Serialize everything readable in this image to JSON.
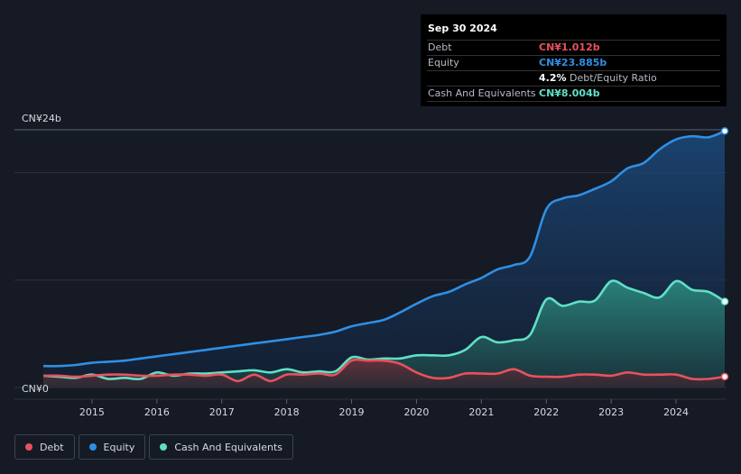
{
  "tooltip": {
    "date": "Sep 30 2024",
    "rows": [
      {
        "label": "Debt",
        "value": "CN¥1.012b",
        "color": "#e8525b"
      },
      {
        "label": "Equity",
        "value": "CN¥23.885b",
        "color": "#2f8fe4"
      },
      {
        "ratio_value": "4.2%",
        "ratio_label": "Debt/Equity Ratio"
      },
      {
        "label": "Cash And Equivalents",
        "value": "CN¥8.004b",
        "color": "#5fe0c6"
      }
    ]
  },
  "legend": [
    {
      "label": "Debt",
      "color": "#e8525b"
    },
    {
      "label": "Equity",
      "color": "#2f8fe4"
    },
    {
      "label": "Cash And Equivalents",
      "color": "#5fe0c6"
    }
  ],
  "chart_data": {
    "type": "area",
    "y_top_label": "CN¥24b",
    "y_zero_label": "CN¥0",
    "ylim": [
      0,
      24
    ],
    "xlim": [
      2014.25,
      2024.75
    ],
    "x_ticks": [
      "2015",
      "2016",
      "2017",
      "2018",
      "2019",
      "2020",
      "2021",
      "2022",
      "2023",
      "2024"
    ],
    "grid": true,
    "series": [
      {
        "name": "Equity",
        "color": "#2f8fe4",
        "points": [
          [
            2014.25,
            2.0
          ],
          [
            2014.5,
            2.0
          ],
          [
            2014.75,
            2.1
          ],
          [
            2015.0,
            2.3
          ],
          [
            2015.25,
            2.4
          ],
          [
            2015.5,
            2.5
          ],
          [
            2015.75,
            2.7
          ],
          [
            2016.0,
            2.9
          ],
          [
            2016.25,
            3.1
          ],
          [
            2016.5,
            3.3
          ],
          [
            2016.75,
            3.5
          ],
          [
            2017.0,
            3.7
          ],
          [
            2017.25,
            3.9
          ],
          [
            2017.5,
            4.1
          ],
          [
            2017.75,
            4.3
          ],
          [
            2018.0,
            4.5
          ],
          [
            2018.25,
            4.7
          ],
          [
            2018.5,
            4.9
          ],
          [
            2018.75,
            5.2
          ],
          [
            2019.0,
            5.7
          ],
          [
            2019.25,
            6.0
          ],
          [
            2019.5,
            6.3
          ],
          [
            2019.75,
            7.0
          ],
          [
            2020.0,
            7.8
          ],
          [
            2020.25,
            8.5
          ],
          [
            2020.5,
            8.9
          ],
          [
            2020.75,
            9.6
          ],
          [
            2021.0,
            10.2
          ],
          [
            2021.25,
            11.0
          ],
          [
            2021.5,
            11.4
          ],
          [
            2021.75,
            12.2
          ],
          [
            2022.0,
            16.6
          ],
          [
            2022.25,
            17.6
          ],
          [
            2022.5,
            17.9
          ],
          [
            2022.75,
            18.5
          ],
          [
            2023.0,
            19.2
          ],
          [
            2023.25,
            20.4
          ],
          [
            2023.5,
            20.9
          ],
          [
            2023.75,
            22.2
          ],
          [
            2024.0,
            23.1
          ],
          [
            2024.25,
            23.4
          ],
          [
            2024.5,
            23.3
          ],
          [
            2024.75,
            23.885
          ]
        ]
      },
      {
        "name": "Cash And Equivalents",
        "color": "#5fe0c6",
        "points": [
          [
            2014.25,
            1.1
          ],
          [
            2014.5,
            1.0
          ],
          [
            2014.75,
            0.9
          ],
          [
            2015.0,
            1.2
          ],
          [
            2015.25,
            0.8
          ],
          [
            2015.5,
            0.9
          ],
          [
            2015.75,
            0.8
          ],
          [
            2016.0,
            1.4
          ],
          [
            2016.25,
            1.1
          ],
          [
            2016.5,
            1.3
          ],
          [
            2016.75,
            1.3
          ],
          [
            2017.0,
            1.4
          ],
          [
            2017.25,
            1.5
          ],
          [
            2017.5,
            1.6
          ],
          [
            2017.75,
            1.4
          ],
          [
            2018.0,
            1.7
          ],
          [
            2018.25,
            1.4
          ],
          [
            2018.5,
            1.5
          ],
          [
            2018.75,
            1.5
          ],
          [
            2019.0,
            2.8
          ],
          [
            2019.25,
            2.6
          ],
          [
            2019.5,
            2.7
          ],
          [
            2019.75,
            2.7
          ],
          [
            2020.0,
            3.0
          ],
          [
            2020.25,
            3.0
          ],
          [
            2020.5,
            3.0
          ],
          [
            2020.75,
            3.5
          ],
          [
            2021.0,
            4.7
          ],
          [
            2021.25,
            4.2
          ],
          [
            2021.5,
            4.4
          ],
          [
            2021.75,
            4.9
          ],
          [
            2022.0,
            8.2
          ],
          [
            2022.25,
            7.6
          ],
          [
            2022.5,
            8.0
          ],
          [
            2022.75,
            8.1
          ],
          [
            2023.0,
            9.9
          ],
          [
            2023.25,
            9.3
          ],
          [
            2023.5,
            8.8
          ],
          [
            2023.75,
            8.4
          ],
          [
            2024.0,
            9.9
          ],
          [
            2024.25,
            9.1
          ],
          [
            2024.5,
            8.9
          ],
          [
            2024.75,
            8.004
          ]
        ]
      },
      {
        "name": "Debt",
        "color": "#e8525b",
        "points": [
          [
            2014.25,
            1.1
          ],
          [
            2014.5,
            1.1
          ],
          [
            2014.75,
            1.0
          ],
          [
            2015.0,
            1.1
          ],
          [
            2015.25,
            1.2
          ],
          [
            2015.5,
            1.2
          ],
          [
            2015.75,
            1.1
          ],
          [
            2016.0,
            1.1
          ],
          [
            2016.25,
            1.2
          ],
          [
            2016.5,
            1.2
          ],
          [
            2016.75,
            1.1
          ],
          [
            2017.0,
            1.2
          ],
          [
            2017.25,
            0.6
          ],
          [
            2017.5,
            1.2
          ],
          [
            2017.75,
            0.6
          ],
          [
            2018.0,
            1.2
          ],
          [
            2018.25,
            1.2
          ],
          [
            2018.5,
            1.3
          ],
          [
            2018.75,
            1.2
          ],
          [
            2019.0,
            2.5
          ],
          [
            2019.25,
            2.5
          ],
          [
            2019.5,
            2.5
          ],
          [
            2019.75,
            2.2
          ],
          [
            2020.0,
            1.4
          ],
          [
            2020.25,
            0.9
          ],
          [
            2020.5,
            0.9
          ],
          [
            2020.75,
            1.3
          ],
          [
            2021.0,
            1.3
          ],
          [
            2021.25,
            1.3
          ],
          [
            2021.5,
            1.7
          ],
          [
            2021.75,
            1.1
          ],
          [
            2022.0,
            1.0
          ],
          [
            2022.25,
            1.0
          ],
          [
            2022.5,
            1.2
          ],
          [
            2022.75,
            1.2
          ],
          [
            2023.0,
            1.1
          ],
          [
            2023.25,
            1.4
          ],
          [
            2023.5,
            1.2
          ],
          [
            2023.75,
            1.2
          ],
          [
            2024.0,
            1.2
          ],
          [
            2024.25,
            0.8
          ],
          [
            2024.5,
            0.8
          ],
          [
            2024.75,
            1.012
          ]
        ]
      }
    ]
  }
}
